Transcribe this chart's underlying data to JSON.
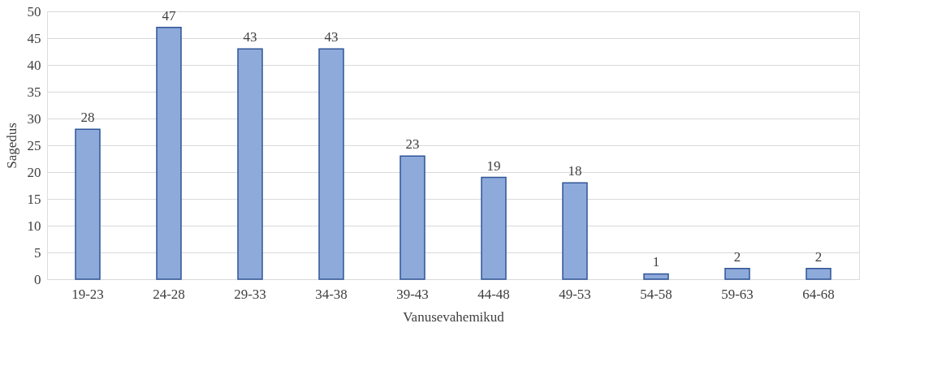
{
  "chart_data": {
    "type": "bar",
    "xlabel": "Vanusevahemikud",
    "ylabel": "Sagedus",
    "categories": [
      "19-23",
      "24-28",
      "29-33",
      "34-38",
      "39-43",
      "44-48",
      "49-53",
      "54-58",
      "59-63",
      "64-68"
    ],
    "values": [
      28,
      47,
      43,
      43,
      23,
      19,
      18,
      1,
      2,
      2
    ],
    "color": "#8eaadb",
    "ylim": [
      0,
      50
    ],
    "yticks": [
      0,
      5,
      10,
      15,
      20,
      25,
      30,
      35,
      40,
      45,
      50
    ],
    "grid": "y",
    "data_labels": true
  }
}
